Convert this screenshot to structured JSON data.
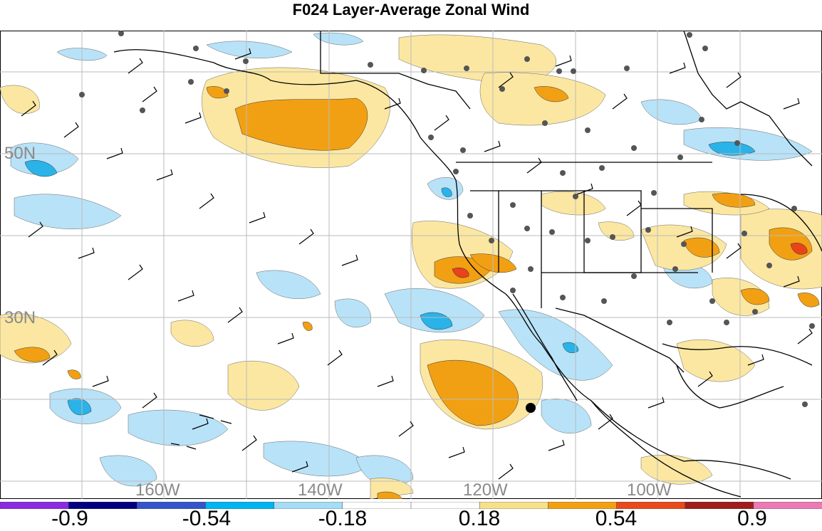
{
  "title": "F024 Layer-Average Zonal Wind",
  "lat_labels": [
    "50N",
    "30N"
  ],
  "lon_labels": [
    "160W",
    "140W",
    "120W",
    "100W"
  ],
  "colorbar": {
    "labels": [
      "-0.9",
      "-0.54",
      "-0.18",
      "0.18",
      "0.54",
      "0.9"
    ],
    "colors": [
      "#8a2be2",
      "#00007f",
      "#3455c9",
      "#00b4f0",
      "#a6dcf5",
      "#ffffff",
      "#ffffff",
      "#f7e08c",
      "#f2a013",
      "#e84a1c",
      "#a11c1c",
      "#ec7ab5"
    ]
  },
  "fill_colors": {
    "light_blue": "#b3e0f7",
    "mid_blue": "#2bb5ea",
    "light_yellow": "#fbe8a3",
    "orange": "#f2a013",
    "red": "#e8431c"
  }
}
